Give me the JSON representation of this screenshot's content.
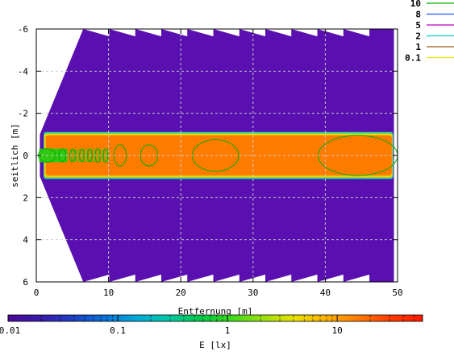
{
  "chart_data": {
    "type": "heatmap",
    "xlabel": "Entfernung [m]",
    "ylabel": "seitlich [m]",
    "colorbar_label": "E [lx]",
    "xlim": [
      0,
      50
    ],
    "ylim": [
      -6,
      6
    ],
    "y_inverted": true,
    "x_ticks": [
      "0",
      "10",
      "20",
      "30",
      "40",
      "50"
    ],
    "x_tick_values": [
      0,
      10,
      20,
      30,
      40,
      50
    ],
    "y_ticks": [
      "-6",
      "-4",
      "-2",
      "0",
      "2",
      "4",
      "6"
    ],
    "y_tick_values": [
      -6,
      -4,
      -2,
      0,
      2,
      4,
      6
    ],
    "grid": true,
    "colorbar": {
      "scale": "log",
      "range": [
        0.01,
        60
      ],
      "ticks": [
        "0.01",
        "0.1",
        "1",
        "10"
      ],
      "tick_values": [
        0.01,
        0.1,
        1,
        10
      ],
      "colors": [
        "#4a0a9a",
        "#3a1aa8",
        "#1e3ec4",
        "#0a70d8",
        "#00a8d8",
        "#00c8a8",
        "#00c84a",
        "#3ad81a",
        "#9ce010",
        "#e8e000",
        "#ffb000",
        "#ff7a00",
        "#ff3a00",
        "#ff1a00"
      ]
    },
    "fill": {
      "background_level_color": "#5a10b0",
      "beam_color": "#ff7c00",
      "beam_halfwidth": 1.0,
      "fan_start_x": 0.5,
      "fan_full_x": 6.5,
      "right_edge_x": 49.5
    },
    "legend": {
      "placement": "top-right",
      "entries": [
        {
          "label": "10",
          "color": "#00b000"
        },
        {
          "label": "8",
          "color": "#1e5cff"
        },
        {
          "label": "5",
          "color": "#c000c0"
        },
        {
          "label": "2",
          "color": "#00d0d0"
        },
        {
          "label": "1",
          "color": "#a05a14"
        },
        {
          "label": "0.1",
          "color": "#e8e000"
        }
      ]
    },
    "contour_10_lx": [
      {
        "cx": 1.5,
        "cy": 0,
        "rx": 1.2,
        "ry": 0.32
      },
      {
        "cx": 3.6,
        "cy": 0,
        "rx": 0.5,
        "ry": 0.3
      },
      {
        "cx": 5.0,
        "cy": 0,
        "rx": 0.4,
        "ry": 0.3
      },
      {
        "cx": 6.3,
        "cy": 0,
        "rx": 0.3,
        "ry": 0.3
      },
      {
        "cx": 7.4,
        "cy": 0,
        "rx": 0.3,
        "ry": 0.3
      },
      {
        "cx": 8.5,
        "cy": 0,
        "rx": 0.35,
        "ry": 0.32
      },
      {
        "cx": 9.6,
        "cy": 0,
        "rx": 0.35,
        "ry": 0.32
      },
      {
        "cx": 11.6,
        "cy": 0,
        "rx": 0.85,
        "ry": 0.5
      },
      {
        "cx": 15.6,
        "cy": 0,
        "rx": 1.2,
        "ry": 0.5
      },
      {
        "cx": 24.8,
        "cy": 0,
        "rx": 3.2,
        "ry": 0.75
      },
      {
        "cx": 44.5,
        "cy": 0,
        "rx": 5.5,
        "ry": 0.95
      }
    ]
  }
}
